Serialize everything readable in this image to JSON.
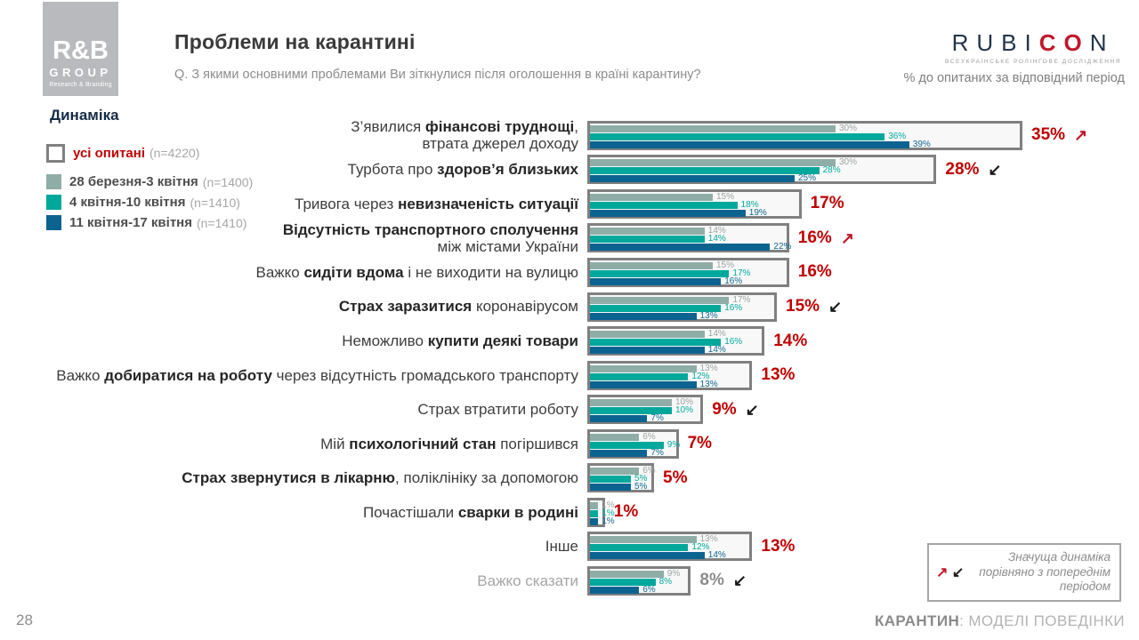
{
  "header": {
    "title": "Проблеми на карантині",
    "question": "Q. З якими основними проблемами Ви зіткнулися після оголошення в країні карантину?",
    "note": "% до опитаних за відповідний період"
  },
  "logos": {
    "rnb": {
      "line1": "R&B",
      "line2": "GROUP",
      "line3": "Research & Branding"
    },
    "rubicon": {
      "part1": "RUBI",
      "part2": "CO",
      "part3": "N",
      "tagline": "ВСЕУКРАЇНСЬКЕ РОЛІНГОВЕ ДОСЛІДЖЕННЯ"
    }
  },
  "legend": {
    "title": "Динаміка",
    "items": [
      {
        "label": "усі опитані",
        "n": "(n=4220)",
        "swatch_fill": "#ffffff",
        "swatch_border": "#808080",
        "label_color": "#c00000"
      },
      {
        "label": "28 березня-3 квітня",
        "n": "(n=1400)",
        "swatch_fill": "#8fada7",
        "swatch_border": "",
        "label_color": ""
      },
      {
        "label": "4 квітня-10 квітня",
        "n": "(n=1410)",
        "swatch_fill": "#00a89b",
        "swatch_border": "",
        "label_color": ""
      },
      {
        "label": "11 квітня-17 квітня",
        "n": "(n=1410)",
        "swatch_fill": "#0c6390",
        "swatch_border": "",
        "label_color": ""
      }
    ]
  },
  "dynamics_note": {
    "up_arrow": "↗",
    "down_arrow": "↙",
    "line1": "Значуща динаміка",
    "line2": "порівняно з попереднім",
    "line3": "періодом"
  },
  "footer": {
    "page_number": "28",
    "right_bold": "КАРАНТИН",
    "right_rest": ": МОДЕЛІ ПОВЕДІНКИ"
  },
  "chart_data": {
    "type": "bar",
    "orientation": "horizontal",
    "unit": "%",
    "xlim": [
      0,
      40
    ],
    "title": "Проблеми на карантині",
    "series_names": [
      "усі опитані",
      "28 березня-3 квітня",
      "4 квітня-10 квітня",
      "11 квітня-17 квітня"
    ],
    "series_colors": [
      "#8fada7",
      "#00a89b",
      "#0c6390"
    ],
    "value_label_colors": [
      "#9ba4a1",
      "#00a89b",
      "#10688f"
    ],
    "total_color": "#c00000",
    "rows": [
      {
        "label": [
          [
            {
              "t": "З’явилися ",
              "b": false
            },
            {
              "t": "фінансові труднощі",
              "b": true
            },
            {
              "t": ",",
              "b": false
            }
          ],
          [
            {
              "t": "втрата джерел доходу",
              "b": false
            }
          ]
        ],
        "values": [
          30,
          36,
          39
        ],
        "total": 35,
        "trend": "up",
        "muted": false
      },
      {
        "label": [
          [
            {
              "t": "Турбота про ",
              "b": false
            },
            {
              "t": "здоров’я близьких",
              "b": true
            }
          ]
        ],
        "values": [
          30,
          28,
          25
        ],
        "total": 28,
        "trend": "down",
        "muted": false
      },
      {
        "label": [
          [
            {
              "t": "Тривога через ",
              "b": false
            },
            {
              "t": "невизначеність ситуації",
              "b": true
            }
          ]
        ],
        "values": [
          15,
          18,
          19
        ],
        "total": 17,
        "trend": null,
        "muted": false
      },
      {
        "label": [
          [
            {
              "t": "Відсутність транспортного сполучення",
              "b": true
            }
          ],
          [
            {
              "t": "між містами України",
              "b": false
            }
          ]
        ],
        "values": [
          14,
          14,
          22
        ],
        "total": 16,
        "trend": "up",
        "muted": false
      },
      {
        "label": [
          [
            {
              "t": "Важко ",
              "b": false
            },
            {
              "t": "сидіти вдома",
              "b": true
            },
            {
              "t": " і не виходити на вулицю",
              "b": false
            }
          ]
        ],
        "values": [
          15,
          17,
          16
        ],
        "total": 16,
        "trend": null,
        "muted": false
      },
      {
        "label": [
          [
            {
              "t": "Страх заразитися",
              "b": true
            },
            {
              "t": " коронавірусом",
              "b": false
            }
          ]
        ],
        "values": [
          17,
          16,
          13
        ],
        "total": 15,
        "trend": "down",
        "muted": false
      },
      {
        "label": [
          [
            {
              "t": "Неможливо ",
              "b": false
            },
            {
              "t": "купити деякі товари",
              "b": true
            }
          ]
        ],
        "values": [
          14,
          16,
          14
        ],
        "total": 14,
        "trend": null,
        "muted": false
      },
      {
        "label": [
          [
            {
              "t": "Важко ",
              "b": false
            },
            {
              "t": "добиратися на роботу",
              "b": true
            },
            {
              "t": " через відсутність громадського транспорту",
              "b": false
            }
          ]
        ],
        "values": [
          13,
          12,
          13
        ],
        "total": 13,
        "trend": null,
        "muted": false
      },
      {
        "label": [
          [
            {
              "t": "Страх втратити роботу",
              "b": false
            }
          ]
        ],
        "values": [
          10,
          10,
          7
        ],
        "total": 9,
        "trend": "down",
        "muted": false
      },
      {
        "label": [
          [
            {
              "t": "Мій ",
              "b": false
            },
            {
              "t": "психологічний стан",
              "b": true
            },
            {
              "t": " погіршився",
              "b": false
            }
          ]
        ],
        "values": [
          6,
          9,
          7
        ],
        "total": 7,
        "trend": null,
        "muted": false
      },
      {
        "label": [
          [
            {
              "t": "Страх звернутися в лікарню",
              "b": true
            },
            {
              "t": ", поліклініку за допомогою",
              "b": false
            }
          ]
        ],
        "values": [
          6,
          5,
          5
        ],
        "total": 5,
        "trend": null,
        "muted": false
      },
      {
        "label": [
          [
            {
              "t": "Почастішали ",
              "b": false
            },
            {
              "t": "сварки в родині",
              "b": true
            }
          ]
        ],
        "values": [
          1,
          1,
          1
        ],
        "total": 1,
        "trend": null,
        "muted": false
      },
      {
        "label": [
          [
            {
              "t": "Інше",
              "b": false
            }
          ]
        ],
        "values": [
          13,
          12,
          14
        ],
        "total": 13,
        "trend": null,
        "muted": false
      },
      {
        "label": [
          [
            {
              "t": "Важко сказати",
              "b": false
            }
          ]
        ],
        "values": [
          9,
          8,
          6
        ],
        "total": 8,
        "trend": "down",
        "muted": true
      }
    ]
  }
}
